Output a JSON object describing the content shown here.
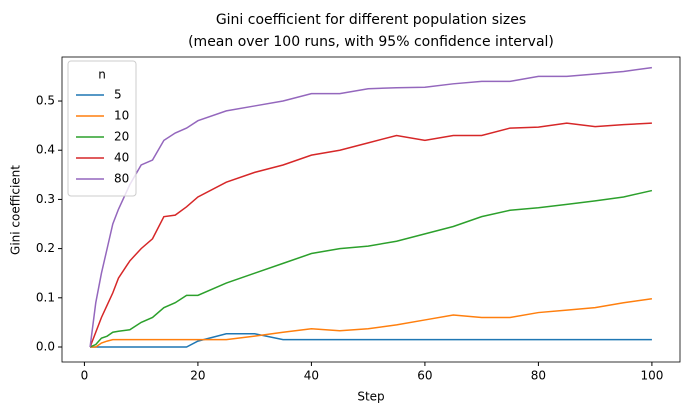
{
  "chart_data": {
    "type": "line",
    "title": "Gini coefficient for different population sizes",
    "subtitle": "(mean over 100 runs, with 95% confidence interval)",
    "x_label": "Step",
    "y_label": "Gini coefficient",
    "legend_title": "n",
    "legend": "upper left",
    "x": [
      1,
      2,
      3,
      4,
      5,
      6,
      8,
      10,
      12,
      14,
      16,
      18,
      20,
      25,
      30,
      35,
      40,
      45,
      50,
      55,
      60,
      65,
      70,
      75,
      80,
      85,
      90,
      95,
      100
    ],
    "series": [
      {
        "name": "5",
        "color": "#1f77b4",
        "values": [
          0,
          0,
          0,
          0,
          0,
          0,
          0,
          0,
          0,
          0,
          0,
          0,
          0.012,
          0.027,
          0.027,
          0.015,
          0.015,
          0.015,
          0.015,
          0.015,
          0.015,
          0.015,
          0.015,
          0.015,
          0.015,
          0.015,
          0.015,
          0.015,
          0.015
        ]
      },
      {
        "name": "10",
        "color": "#ff7f0e",
        "values": [
          0,
          0,
          0.008,
          0.012,
          0.015,
          0.015,
          0.015,
          0.015,
          0.015,
          0.015,
          0.015,
          0.015,
          0.015,
          0.015,
          0.022,
          0.03,
          0.037,
          0.033,
          0.037,
          0.045,
          0.055,
          0.065,
          0.06,
          0.06,
          0.07,
          0.075,
          0.08,
          0.09,
          0.098
        ]
      },
      {
        "name": "20",
        "color": "#2ca02c",
        "values": [
          0,
          0.005,
          0.018,
          0.022,
          0.03,
          0.032,
          0.035,
          0.05,
          0.06,
          0.08,
          0.09,
          0.105,
          0.105,
          0.13,
          0.15,
          0.17,
          0.19,
          0.2,
          0.205,
          0.215,
          0.23,
          0.245,
          0.265,
          0.278,
          0.283,
          0.29,
          0.297,
          0.305,
          0.318
        ]
      },
      {
        "name": "40",
        "color": "#d62728",
        "values": [
          0,
          0.03,
          0.06,
          0.085,
          0.11,
          0.14,
          0.175,
          0.2,
          0.22,
          0.265,
          0.268,
          0.285,
          0.305,
          0.335,
          0.355,
          0.37,
          0.39,
          0.4,
          0.415,
          0.43,
          0.42,
          0.43,
          0.43,
          0.445,
          0.447,
          0.455,
          0.448,
          0.452,
          0.455
        ]
      },
      {
        "name": "80",
        "color": "#9467bd",
        "values": [
          0,
          0.09,
          0.15,
          0.2,
          0.25,
          0.28,
          0.33,
          0.37,
          0.38,
          0.42,
          0.435,
          0.445,
          0.46,
          0.48,
          0.49,
          0.5,
          0.515,
          0.515,
          0.525,
          0.527,
          0.528,
          0.535,
          0.54,
          0.54,
          0.55,
          0.55,
          0.555,
          0.56,
          0.568
        ]
      }
    ],
    "xlim": [
      -3.95,
      104.95
    ],
    "xticks": [
      0,
      20,
      40,
      60,
      80,
      100
    ],
    "ylim": [
      -0.0305,
      0.5895
    ],
    "yticks": [
      {
        "value": 0,
        "label": "0.0"
      },
      0.1,
      0.2,
      0.3,
      0.4,
      0.5
    ]
  }
}
